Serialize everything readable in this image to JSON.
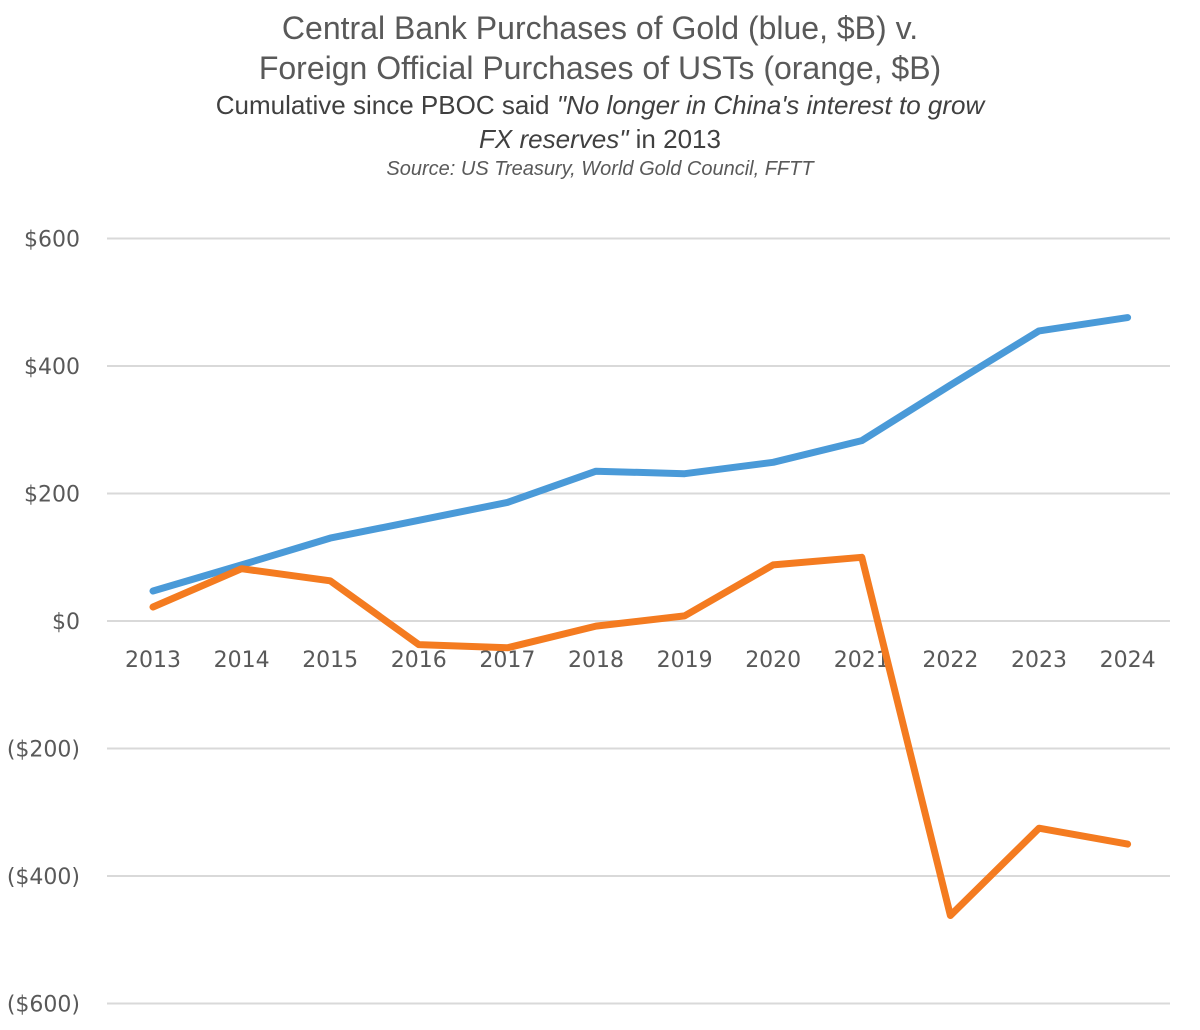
{
  "chart_data": {
    "type": "line",
    "title": "Central Bank Purchases of Gold (blue, $B) v.",
    "title_line2": "Foreign Official Purchases of USTs (orange, $B)",
    "subtitle_part1": "Cumulative since PBOC said ",
    "subtitle_quote_line1": "\"No longer in China's interest to grow",
    "subtitle_quote_line2": "FX reserves\"",
    "subtitle_part2": " in 2013",
    "source": "Source: US Treasury, World Gold Council, FFTT",
    "xlabel": "",
    "ylabel": "",
    "categories": [
      "2013",
      "2014",
      "2015",
      "2016",
      "2017",
      "2018",
      "2019",
      "2020",
      "2021",
      "2022",
      "2023",
      "2024"
    ],
    "ylim": [
      -600,
      600
    ],
    "yticks": [
      600,
      400,
      200,
      0,
      -200,
      -400,
      -600
    ],
    "ytick_labels": [
      "$600",
      "$400",
      "$200",
      "$0",
      "($200)",
      "($400)",
      "($600)"
    ],
    "grid": true,
    "legend": "none",
    "series": [
      {
        "color": "#4A9AD8",
        "values": [
          47,
          88,
          130,
          158,
          186,
          235,
          231,
          249,
          283,
          370,
          455,
          476
        ]
      },
      {
        "color": "#F47B20",
        "values": [
          22,
          82,
          63,
          -37,
          -42,
          -8,
          8,
          88,
          100,
          -462,
          -325,
          -350
        ]
      }
    ]
  }
}
